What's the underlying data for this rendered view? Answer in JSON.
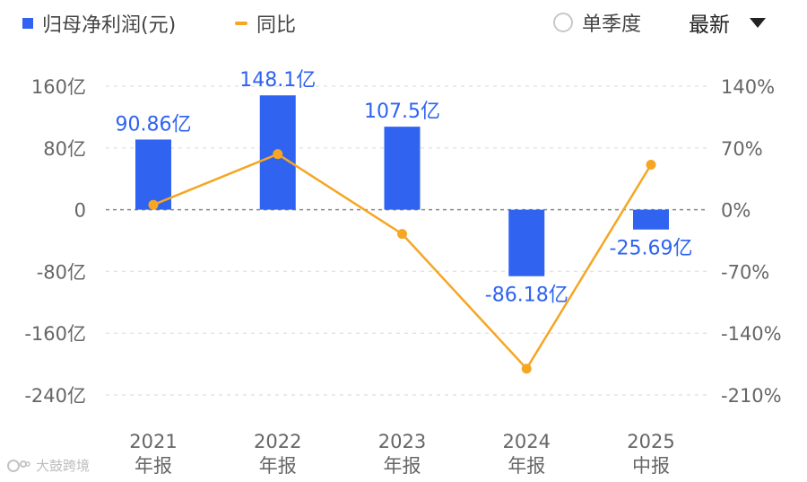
{
  "legend": {
    "bar_label": "归母净利润(元)",
    "line_label": "同比"
  },
  "controls": {
    "single_quarter_label": "单季度",
    "sort_label": "最新"
  },
  "watermark": "大鼓跨境",
  "colors": {
    "bar": "#2f63f0",
    "line": "#f5a623",
    "grid": "#e4e4e4",
    "zero_line": "#888888",
    "axis_text": "#666666",
    "data_label": "#2f63f0"
  },
  "chart_data": {
    "type": "bar",
    "categories": [
      [
        "2021",
        "年报"
      ],
      [
        "2022",
        "年报"
      ],
      [
        "2023",
        "年报"
      ],
      [
        "2024",
        "年报"
      ],
      [
        "2025",
        "中报"
      ]
    ],
    "left_axis": {
      "ylim": [
        -240,
        160
      ],
      "ticks": [
        160,
        80,
        0,
        -80,
        -160,
        -240
      ],
      "tick_labels": [
        "160亿",
        "80亿",
        "0",
        "-80亿",
        "-160亿",
        "-240亿"
      ]
    },
    "right_axis": {
      "ylim": [
        -210,
        140
      ],
      "ticks": [
        140,
        70,
        0,
        -70,
        -140,
        -210
      ],
      "tick_labels": [
        "140%",
        "70%",
        "0%",
        "-70%",
        "-140%",
        "-210%"
      ]
    },
    "series": [
      {
        "name": "归母净利润(元)",
        "type": "bar",
        "axis": "left",
        "values": [
          90.86,
          148.1,
          107.5,
          -86.18,
          -25.69
        ],
        "labels": [
          "90.86亿",
          "148.1亿",
          "107.5亿",
          "-86.18亿",
          "-25.69亿"
        ]
      },
      {
        "name": "同比",
        "type": "line",
        "axis": "right",
        "values": [
          5.5,
          63,
          -27.5,
          -180.2,
          51
        ]
      }
    ],
    "grid": true,
    "legend_position": "top-left"
  }
}
